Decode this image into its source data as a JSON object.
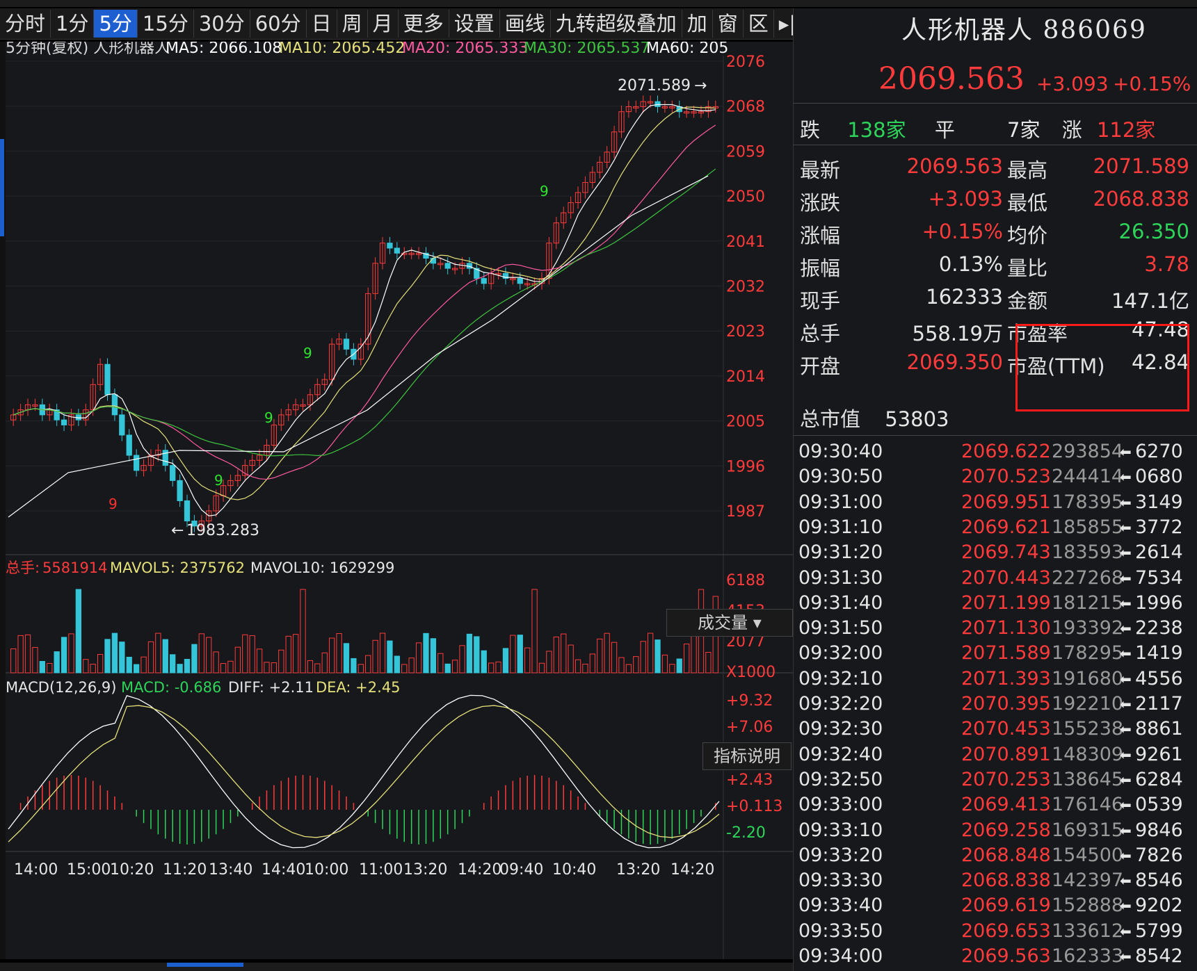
{
  "toolbar": [
    "分时",
    "1分",
    "5分",
    "15分",
    "30分",
    "60分",
    "日",
    "周",
    "月",
    "更多",
    "设置",
    "画线",
    "九转超级叠加",
    "加",
    "窗",
    "区",
    "▸|",
    "▾"
  ],
  "toolbar_active_index": 2,
  "ma_line": {
    "prefix": "5分钟(复权)  人形机器人",
    "ma5": "MA5: 2066.108",
    "ma10": "MA10: 2065.452",
    "ma20": "MA20: 2065.333",
    "ma30": "MA30: 2065.537",
    "ma60": "MA60: 205"
  },
  "price_axis": [
    "2076",
    "2068",
    "2059",
    "2050",
    "2041",
    "2032",
    "2023",
    "2014",
    "2005",
    "1996",
    "1987"
  ],
  "high_marker": "2071.589",
  "low_marker": "1983.283",
  "volume": {
    "total_label": "总手:",
    "total_value": "5581914",
    "mavol5": "MAVOL5: 2375762",
    "mavol10": "MAVOL10: 1629299",
    "axis": [
      "6188",
      "4153",
      "2077",
      "X1000"
    ],
    "selector": "成交量"
  },
  "macd": {
    "title": "MACD(12,26,9)",
    "macd": "MACD: -0.686",
    "diff": "DIFF: +2.11",
    "dea": "DEA: +2.45",
    "axis": [
      "+9.32",
      "+7.06",
      "+4.74",
      "+2.43",
      "+0.113",
      "-2.20"
    ],
    "help": "指标说明"
  },
  "time_axis": [
    "14:00",
    "15:00",
    "10:20",
    "11:20",
    "13:40",
    "14:40",
    "10:00",
    "11:00",
    "13:20",
    "14:20",
    "09:40",
    "10:40",
    "13:20",
    "14:20"
  ],
  "info": {
    "name": "人形机器人 886069",
    "price": "2069.563",
    "change": "+3.093",
    "change_pct": "+0.15%",
    "breadth": {
      "down_label": "跌",
      "down": "138家",
      "flat_label": "平",
      "flat": "7家",
      "up_label": "涨",
      "up": "112家"
    },
    "rows": [
      {
        "l1": "最新",
        "v1": "2069.563",
        "c1": "red",
        "l2": "最高",
        "v2": "2071.589",
        "c2": "red"
      },
      {
        "l1": "涨跌",
        "v1": "+3.093",
        "c1": "red",
        "l2": "最低",
        "v2": "2068.838",
        "c2": "red"
      },
      {
        "l1": "涨幅",
        "v1": "+0.15%",
        "c1": "red",
        "l2": "均价",
        "v2": "26.350",
        "c2": "green"
      },
      {
        "l1": "振幅",
        "v1": "0.13%",
        "c1": "white",
        "l2": "量比",
        "v2": "3.78",
        "c2": "red"
      },
      {
        "l1": "现手",
        "v1": "162333",
        "c1": "white",
        "l2": "金额",
        "v2": "147.1亿",
        "c2": "white"
      },
      {
        "l1": "总手",
        "v1": "558.19万",
        "c1": "white",
        "l2": "市盈率",
        "v2": "47.48",
        "c2": "white"
      },
      {
        "l1": "开盘",
        "v1": "2069.350",
        "c1": "red",
        "l2": "市盈(TTM)",
        "v2": "42.84",
        "c2": "white"
      }
    ],
    "mktcap_label": "总市值",
    "mktcap": "53803"
  },
  "ticks": [
    {
      "t": "09:30:40",
      "p": "2069.622",
      "v": "293854",
      "a": "6270"
    },
    {
      "t": "09:30:50",
      "p": "2070.523",
      "v": "244414",
      "a": "0680"
    },
    {
      "t": "09:31:00",
      "p": "2069.951",
      "v": "178395",
      "a": "3149"
    },
    {
      "t": "09:31:10",
      "p": "2069.621",
      "v": "185855",
      "a": "3772"
    },
    {
      "t": "09:31:20",
      "p": "2069.743",
      "v": "183593",
      "a": "2614"
    },
    {
      "t": "09:31:30",
      "p": "2070.443",
      "v": "227268",
      "a": "7534"
    },
    {
      "t": "09:31:40",
      "p": "2071.199",
      "v": "181215",
      "a": "1996"
    },
    {
      "t": "09:31:50",
      "p": "2071.130",
      "v": "193392",
      "a": "2238"
    },
    {
      "t": "09:32:00",
      "p": "2071.589",
      "v": "178295",
      "a": "1419"
    },
    {
      "t": "09:32:10",
      "p": "2071.393",
      "v": "191680",
      "a": "4556"
    },
    {
      "t": "09:32:20",
      "p": "2070.395",
      "v": "192210",
      "a": "2117"
    },
    {
      "t": "09:32:30",
      "p": "2070.453",
      "v": "155238",
      "a": "8861"
    },
    {
      "t": "09:32:40",
      "p": "2070.891",
      "v": "148309",
      "a": "9261"
    },
    {
      "t": "09:32:50",
      "p": "2070.253",
      "v": "138645",
      "a": "6284"
    },
    {
      "t": "09:33:00",
      "p": "2069.413",
      "v": "176146",
      "a": "0539"
    },
    {
      "t": "09:33:10",
      "p": "2069.258",
      "v": "169315",
      "a": "9846"
    },
    {
      "t": "09:33:20",
      "p": "2068.848",
      "v": "154500",
      "a": "7826"
    },
    {
      "t": "09:33:30",
      "p": "2068.838",
      "v": "142397",
      "a": "8546"
    },
    {
      "t": "09:33:40",
      "p": "2069.619",
      "v": "152888",
      "a": "9202"
    },
    {
      "t": "09:33:50",
      "p": "2069.653",
      "v": "133612",
      "a": "5799"
    },
    {
      "t": "09:34:00",
      "p": "2069.563",
      "v": "162333",
      "a": "8542"
    }
  ],
  "colors": {
    "up": "#ff3b3b",
    "down": "#35c5d8",
    "green": "#2ed45a",
    "ma5": "#ffffff",
    "ma10": "#e6e07a",
    "ma20": "#ff5aa0",
    "ma30": "#3ec43e",
    "ma60": "#ffffff",
    "nine_purple": "#d040ff",
    "nine_green": "#2ee52e",
    "nine_red": "#ff3030"
  }
}
